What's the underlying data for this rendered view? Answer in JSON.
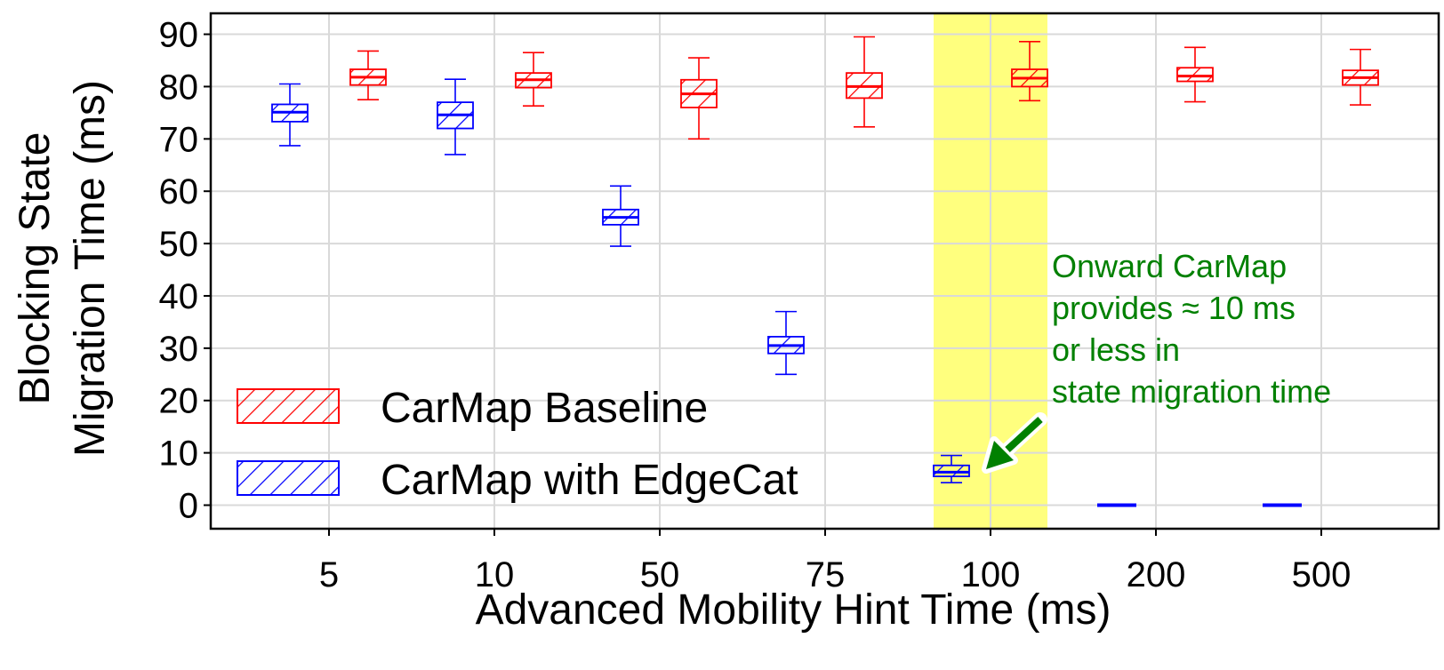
{
  "chart_data": {
    "type": "box",
    "xlabel": "Advanced Mobility Hint Time (ms)",
    "ylabel_lines": [
      "Blocking State",
      "Migration Time (ms)"
    ],
    "categories": [
      "5",
      "10",
      "50",
      "75",
      "100",
      "200",
      "500"
    ],
    "ylim": [
      -4.5,
      94
    ],
    "yticks": [
      0,
      10,
      20,
      30,
      40,
      50,
      60,
      70,
      80,
      90
    ],
    "grid": true,
    "legend_position": "lower-left",
    "highlight_category": "100",
    "series": [
      {
        "name": "CarMap Baseline",
        "color": "#ff0000",
        "boxes": [
          {
            "whisker_low": 77.5,
            "q1": 80.3,
            "median": 81.8,
            "q3": 83.3,
            "whisker_high": 86.8
          },
          {
            "whisker_low": 76.3,
            "q1": 79.8,
            "median": 81.3,
            "q3": 82.6,
            "whisker_high": 86.5
          },
          {
            "whisker_low": 70.0,
            "q1": 76.0,
            "median": 78.6,
            "q3": 81.3,
            "whisker_high": 85.5
          },
          {
            "whisker_low": 72.3,
            "q1": 77.8,
            "median": 80.0,
            "q3": 82.6,
            "whisker_high": 89.5
          },
          {
            "whisker_low": 77.3,
            "q1": 80.0,
            "median": 81.6,
            "q3": 83.3,
            "whisker_high": 88.6
          },
          {
            "whisker_low": 77.1,
            "q1": 81.0,
            "median": 82.0,
            "q3": 83.6,
            "whisker_high": 87.5
          },
          {
            "whisker_low": 76.5,
            "q1": 80.3,
            "median": 81.7,
            "q3": 83.1,
            "whisker_high": 87.1
          }
        ]
      },
      {
        "name": "CarMap with EdgeCat",
        "color": "#0000ff",
        "boxes": [
          {
            "whisker_low": 68.7,
            "q1": 73.3,
            "median": 75.1,
            "q3": 76.6,
            "whisker_high": 80.5
          },
          {
            "whisker_low": 67.0,
            "q1": 72.0,
            "median": 74.6,
            "q3": 77.0,
            "whisker_high": 81.4
          },
          {
            "whisker_low": 49.5,
            "q1": 53.6,
            "median": 55.0,
            "q3": 56.5,
            "whisker_high": 61.0
          },
          {
            "whisker_low": 25.0,
            "q1": 29.0,
            "median": 30.5,
            "q3": 32.2,
            "whisker_high": 37.0
          },
          {
            "whisker_low": 4.3,
            "q1": 5.5,
            "median": 6.3,
            "q3": 7.6,
            "whisker_high": 9.5
          },
          {
            "whisker_low": 0,
            "q1": 0,
            "median": 0,
            "q3": 0,
            "whisker_high": 0
          },
          {
            "whisker_low": 0,
            "q1": 0,
            "median": 0,
            "q3": 0,
            "whisker_high": 0
          }
        ]
      }
    ],
    "annotation": {
      "lines": [
        "Onward CarMap",
        "provides ≈ 10 ms",
        "or less in",
        "state migration time"
      ],
      "color": "#008000",
      "points_to": {
        "category": "100",
        "y": 7
      }
    }
  }
}
